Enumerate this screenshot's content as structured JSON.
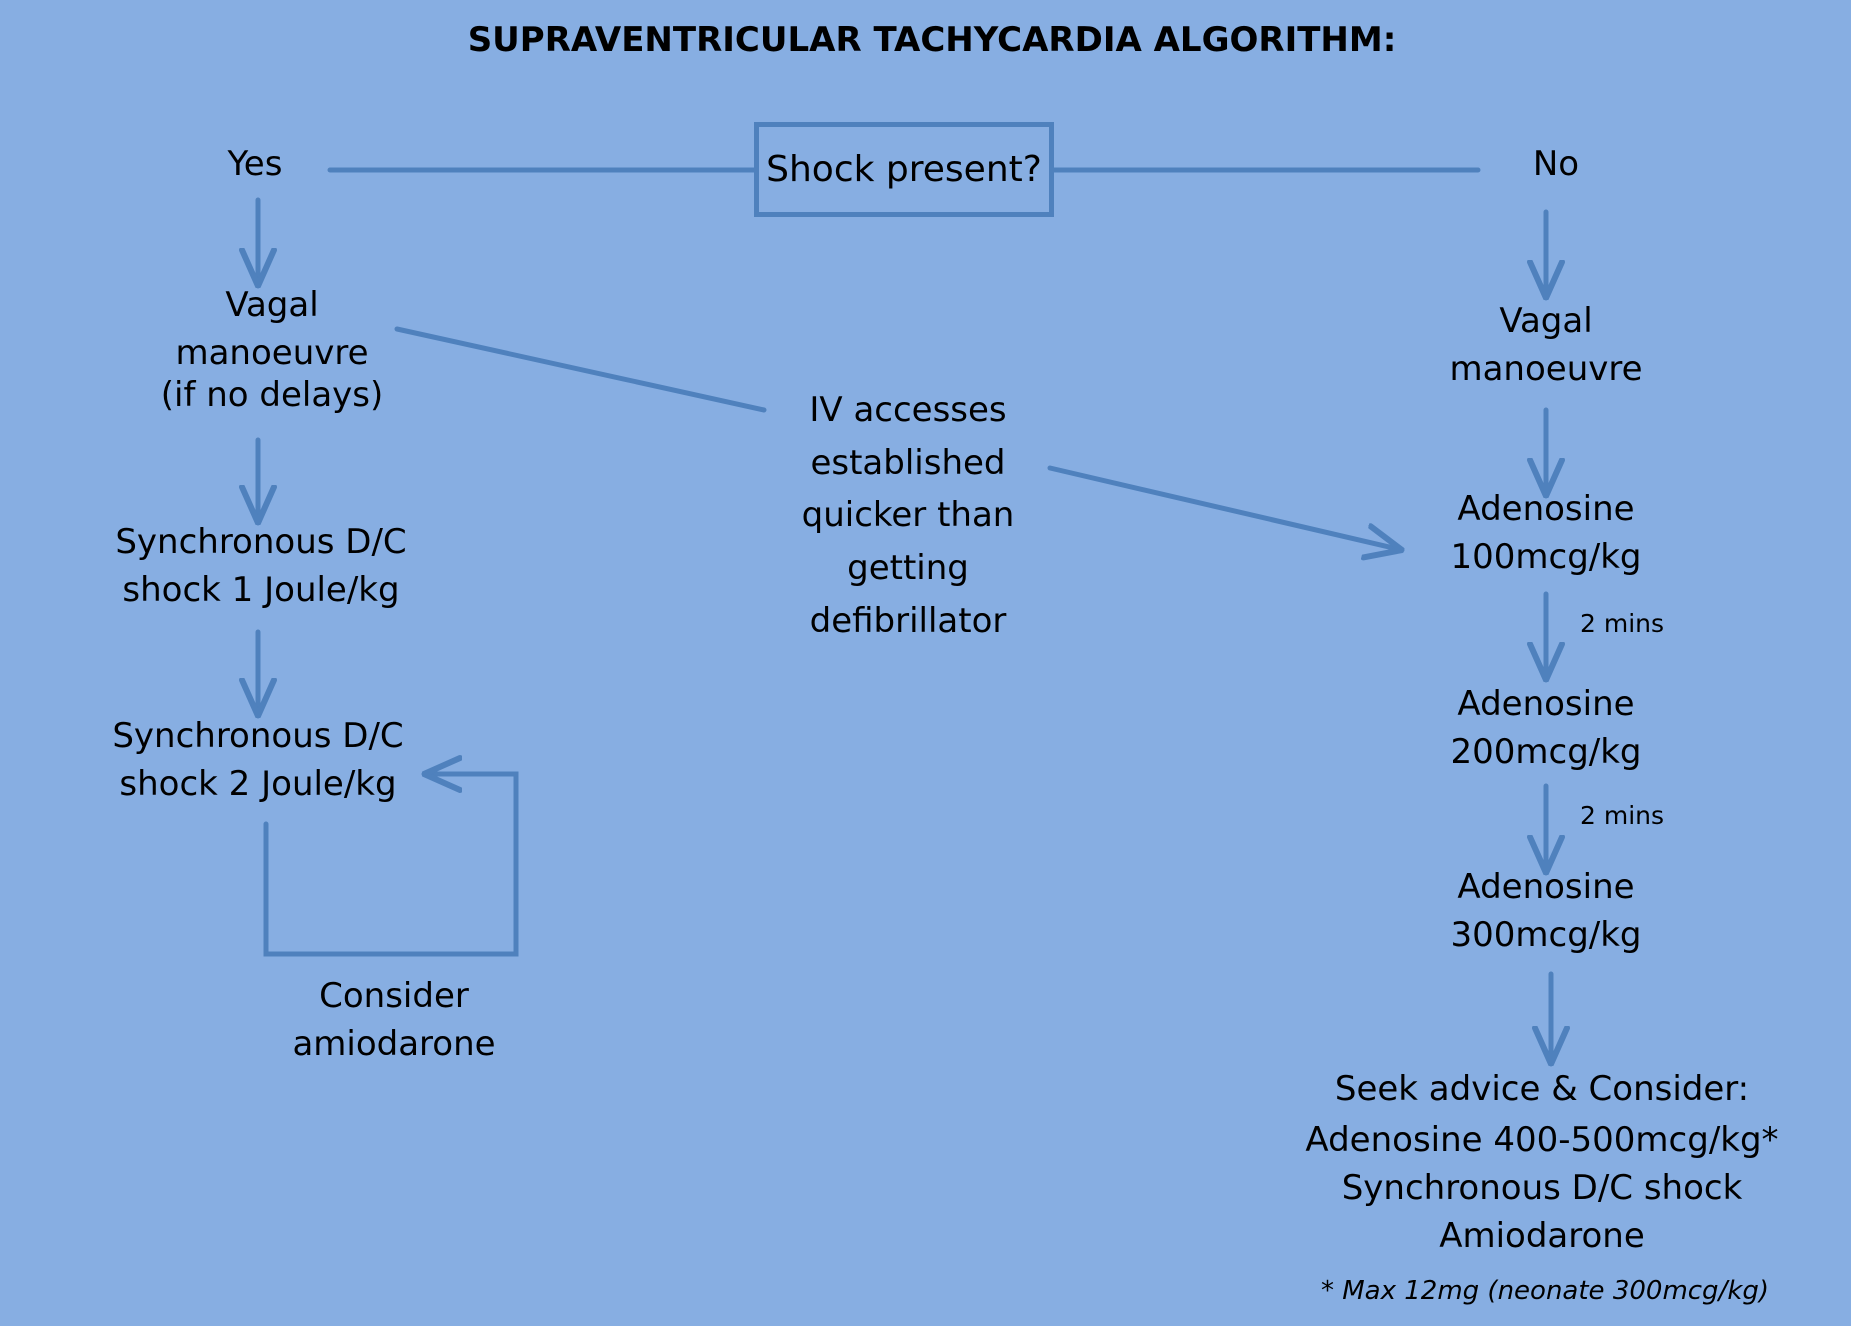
{
  "title": "SUPRAVENTRICULAR TACHYCARDIA ALGORITHM:",
  "decision": {
    "label": "Shock present?"
  },
  "yes_label": "Yes",
  "no_label": "No",
  "left_branch": {
    "vagal": [
      "Vagal",
      "manoeuvre",
      "(if no delays)"
    ],
    "shock1": [
      "Synchronous D/C",
      "shock 1 Joule/kg"
    ],
    "shock2": [
      "Synchronous D/C",
      "shock 2 Joule/kg"
    ],
    "amiodarone": [
      "Consider",
      "amiodarone"
    ]
  },
  "center_note": [
    "IV accesses",
    "established",
    "quicker than",
    "getting",
    "defibrillator"
  ],
  "right_branch": {
    "vagal": [
      "Vagal",
      "manoeuvre"
    ],
    "adenosine1": [
      "Adenosine",
      "100mcg/kg"
    ],
    "interval1": "2 mins",
    "adenosine2": [
      "Adenosine",
      "200mcg/kg"
    ],
    "interval2": "2 mins",
    "adenosine3": [
      "Adenosine",
      "300mcg/kg"
    ],
    "advice": [
      "Seek advice & Consider:",
      "Adenosine 400-500mcg/kg*",
      "Synchronous D/C shock",
      "Amiodarone"
    ],
    "footnote": "* Max 12mg (neonate 300mcg/kg)"
  },
  "colors": {
    "background": "#87AEE2",
    "connector": "#4F81BD",
    "text": "#000000"
  }
}
